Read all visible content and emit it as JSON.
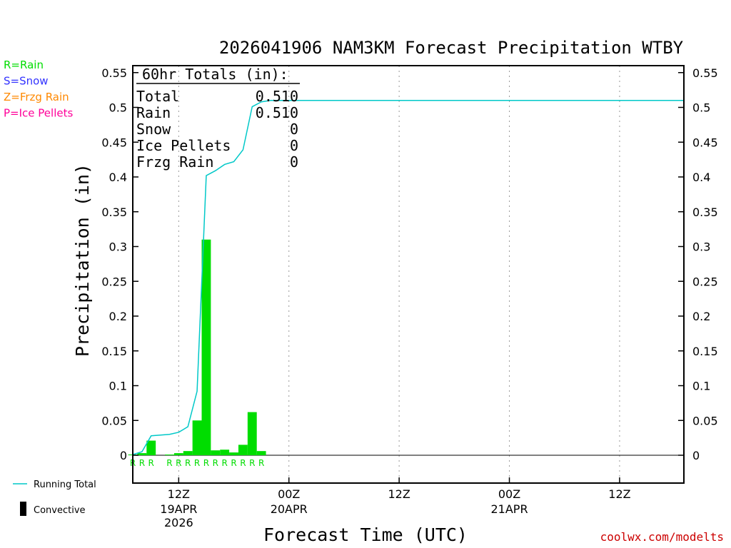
{
  "chart_data": {
    "type": "bar",
    "title": "2026041906 NAM3KM Forecast Precipitation WTBY",
    "xlabel": "Forecast Time (UTC)",
    "ylabel": "Precipitation (in)",
    "ylim": [
      -0.04,
      0.56
    ],
    "yticks": [
      "0",
      "0.05",
      "0.1",
      "0.15",
      "0.2",
      "0.25",
      "0.3",
      "0.35",
      "0.4",
      "0.45",
      "0.5",
      "0.55"
    ],
    "xlim_hours": [
      7,
      67
    ],
    "x_units": "forecast hour from 2026-04-19 06Z",
    "xticks": [
      {
        "hour": 12,
        "label": "12Z",
        "date": "19APR",
        "year": "2026"
      },
      {
        "hour": 24,
        "label": "00Z",
        "date": "20APR",
        "year": ""
      },
      {
        "hour": 36,
        "label": "12Z",
        "date": "",
        "year": ""
      },
      {
        "hour": 48,
        "label": "00Z",
        "date": "21APR",
        "year": ""
      },
      {
        "hour": 60,
        "label": "12Z",
        "date": "",
        "year": ""
      }
    ],
    "grid": "vertical dotted",
    "bars": {
      "name": "Convective",
      "color": "#00dd00",
      "hours": [
        7,
        8,
        9,
        10,
        11,
        12,
        13,
        14,
        15,
        16,
        17,
        18,
        19,
        20,
        21,
        22
      ],
      "values": [
        0.001,
        0.003,
        0.021,
        0.0,
        0.001,
        0.003,
        0.006,
        0.05,
        0.31,
        0.007,
        0.008,
        0.004,
        0.015,
        0.062,
        0.006,
        0.0
      ],
      "ptype": [
        "R",
        "R",
        "R",
        "",
        "R",
        "R",
        "R",
        "R",
        "R",
        "R",
        "R",
        "R",
        "R",
        "R",
        "R",
        ""
      ]
    },
    "running_total": {
      "name": "Running Total",
      "color": "#00c8c8",
      "hours": [
        7,
        8,
        9,
        10,
        11,
        12,
        13,
        14,
        15,
        16,
        17,
        18,
        19,
        20,
        21,
        22,
        67
      ],
      "values": [
        0.001,
        0.005,
        0.028,
        0.029,
        0.03,
        0.033,
        0.041,
        0.092,
        0.402,
        0.409,
        0.418,
        0.422,
        0.439,
        0.501,
        0.508,
        0.51,
        0.51
      ]
    },
    "totals_box": {
      "heading": "60hr Totals (in):",
      "rows": [
        {
          "label": "Total",
          "value": "0.510"
        },
        {
          "label": "Rain",
          "value": "0.510"
        },
        {
          "label": "Snow",
          "value": "0"
        },
        {
          "label": "Ice Pellets",
          "value": "0"
        },
        {
          "label": "Frzg Rain",
          "value": "0"
        }
      ]
    },
    "ptype_legend": [
      {
        "text": "R=Rain",
        "color": "#00dd00"
      },
      {
        "text": "S=Snow",
        "color": "#3333ff"
      },
      {
        "text": "Z=Frzg Rain",
        "color": "#ff8800"
      },
      {
        "text": "P=Ice Pellets",
        "color": "#ff0099"
      }
    ],
    "series_legend": {
      "line_label": "Running Total",
      "bar_label": "Convective"
    }
  },
  "watermark": "coolwx.com/modelts"
}
